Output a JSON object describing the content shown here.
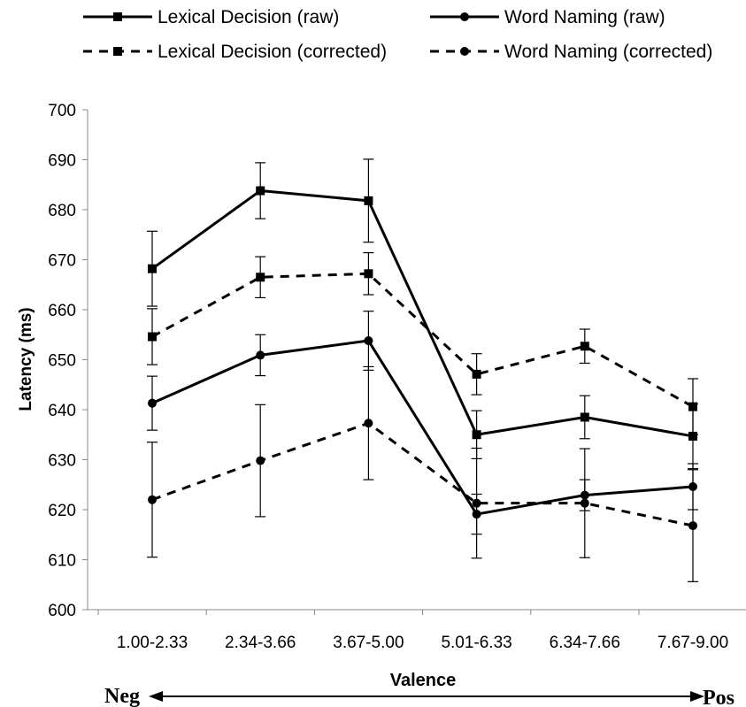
{
  "chart_data": {
    "type": "line",
    "title": "",
    "xlabel": "Valence",
    "ylabel": "Latency (ms)",
    "ylim": [
      600,
      700
    ],
    "y_ticks": [
      600,
      610,
      620,
      630,
      640,
      650,
      660,
      670,
      680,
      690,
      700
    ],
    "grid": false,
    "legend_position": "top",
    "categories": [
      "1.00-2.33",
      "2.34-3.66",
      "3.67-5.00",
      "5.01-6.33",
      "6.34-7.66",
      "7.67-9.00"
    ],
    "series": [
      {
        "name": "Lexical Decision (raw)",
        "marker": "square",
        "dash": "solid",
        "values": [
          668.2,
          683.8,
          681.8,
          635.0,
          638.5,
          634.7
        ],
        "error": [
          7.5,
          5.6,
          8.3,
          4.8,
          4.3,
          6.5
        ]
      },
      {
        "name": "Word Naming (raw)",
        "marker": "circle",
        "dash": "solid",
        "values": [
          641.3,
          650.9,
          653.8,
          619.1,
          622.9,
          624.6
        ],
        "error": [
          5.4,
          4.1,
          5.9,
          4.0,
          3.1,
          4.6
        ]
      },
      {
        "name": "Lexical Decision (corrected)",
        "marker": "square",
        "dash": "dashed",
        "values": [
          654.6,
          666.5,
          667.2,
          647.1,
          652.7,
          640.6
        ],
        "error": [
          5.6,
          4.1,
          4.2,
          4.1,
          3.4,
          5.6
        ]
      },
      {
        "name": "Word Naming (corrected)",
        "marker": "circle",
        "dash": "dashed",
        "values": [
          622.0,
          629.8,
          637.3,
          621.3,
          621.3,
          616.8
        ],
        "error": [
          11.5,
          11.2,
          11.3,
          11.0,
          10.9,
          11.2
        ]
      }
    ],
    "annotations": {
      "left": "Neg",
      "right": "Pos"
    },
    "line_color": "#000000"
  }
}
